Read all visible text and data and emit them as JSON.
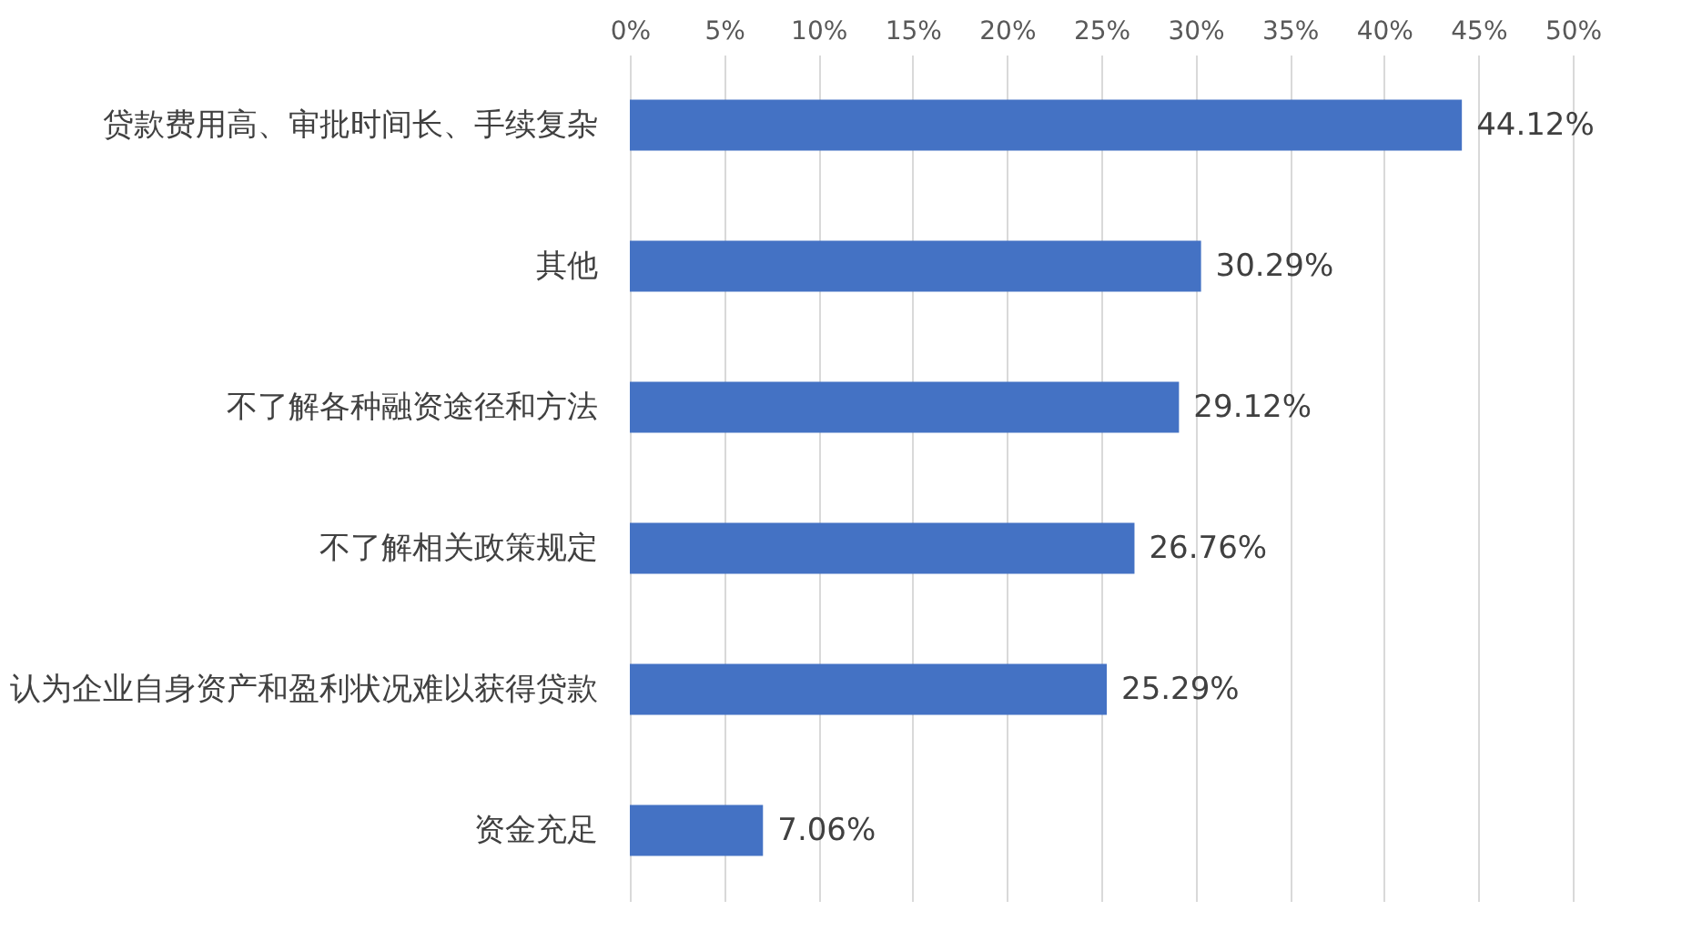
{
  "chart_data": {
    "type": "bar",
    "orientation": "horizontal",
    "categories": [
      "贷款费用高、审批时间长、手续复杂",
      "其他",
      "不了解各种融资途径和方法",
      "不了解相关政策规定",
      "认为企业自身资产和盈利状况难以获得贷款",
      "资金充足"
    ],
    "values": [
      44.12,
      30.29,
      29.12,
      26.76,
      25.29,
      7.06
    ],
    "value_labels": [
      "44.12%",
      "30.29%",
      "29.12%",
      "26.76%",
      "25.29%",
      "7.06%"
    ],
    "color": "#4472c4",
    "xlim": [
      0,
      50
    ],
    "xticks": [
      {
        "value": 0,
        "label": "0%"
      },
      {
        "value": 5,
        "label": "5%"
      },
      {
        "value": 10,
        "label": "10%"
      },
      {
        "value": 15,
        "label": "15%"
      },
      {
        "value": 20,
        "label": "20%"
      },
      {
        "value": 25,
        "label": "25%"
      },
      {
        "value": 30,
        "label": "30%"
      },
      {
        "value": 35,
        "label": "35%"
      },
      {
        "value": 40,
        "label": "40%"
      },
      {
        "value": 45,
        "label": "45%"
      },
      {
        "value": 50,
        "label": "50%"
      }
    ],
    "grid": "x"
  }
}
